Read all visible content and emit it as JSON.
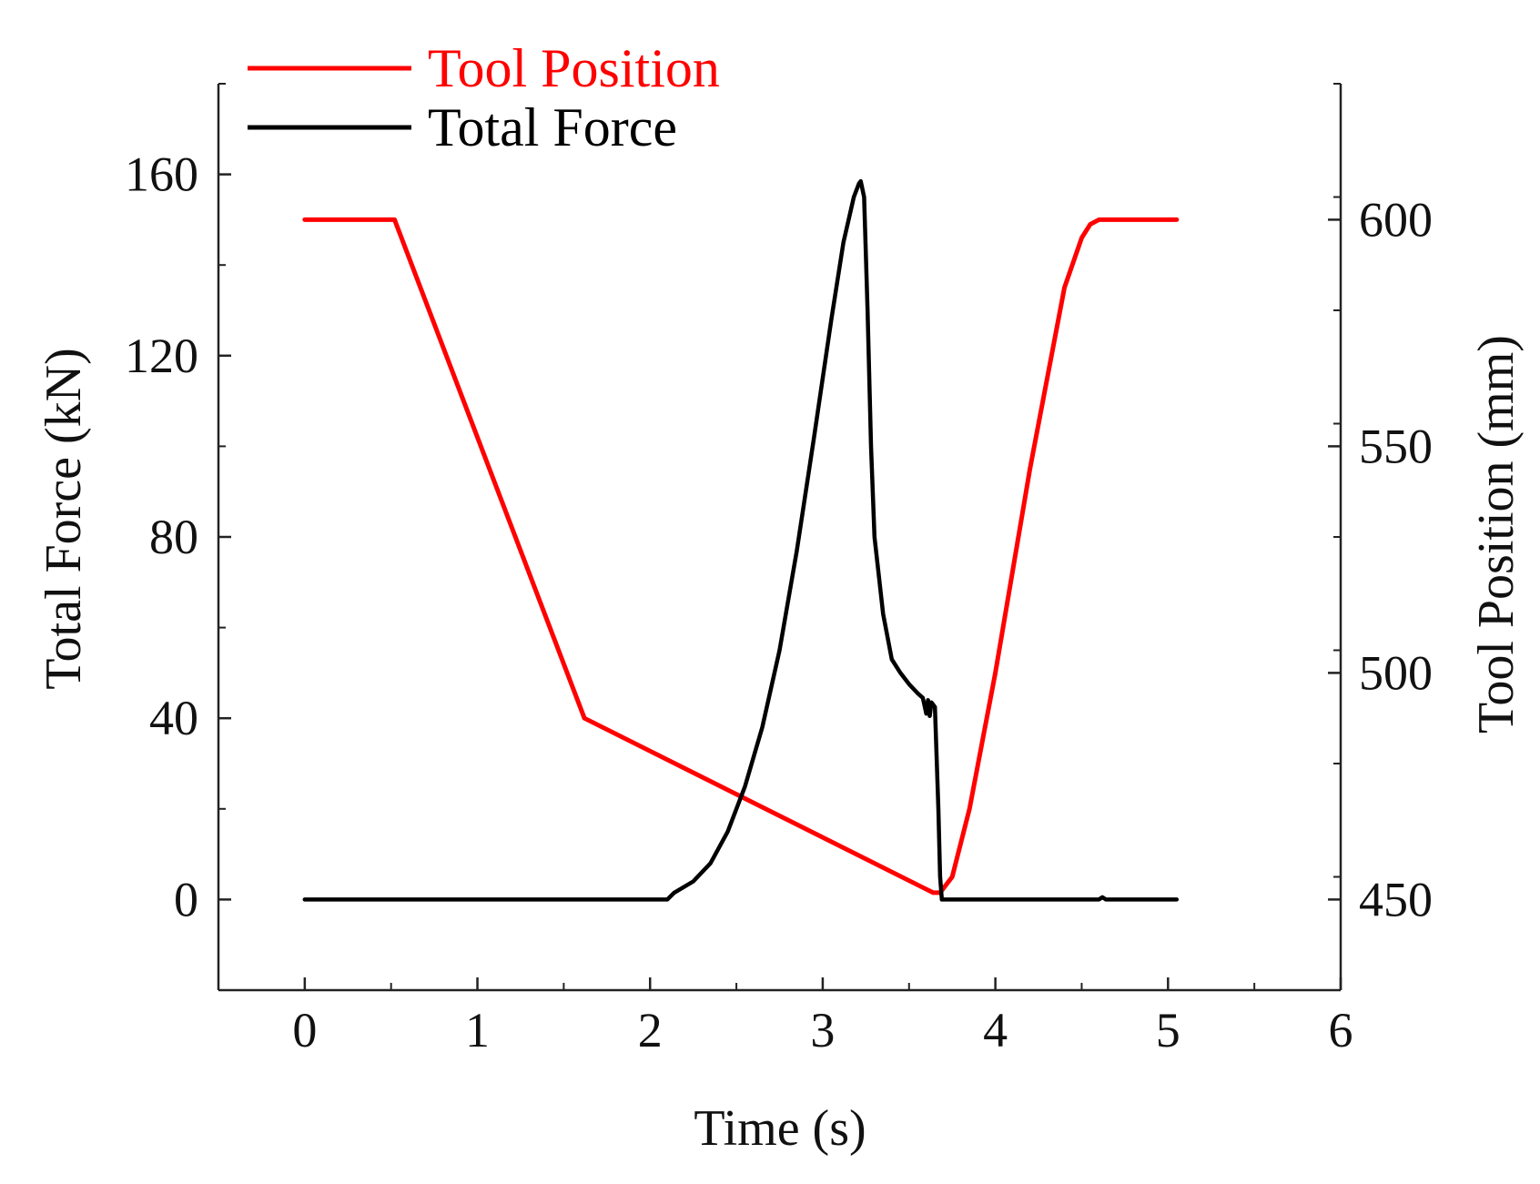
{
  "chart_data": {
    "type": "line",
    "xlabel": "Time (s)",
    "ylabel_left": "Total Force (kN)",
    "ylabel_right": "Tool Position (mm)",
    "xlim": [
      -0.5,
      6
    ],
    "ylim_left": [
      -20,
      180
    ],
    "ylim_right": [
      430,
      630
    ],
    "x_ticks": [
      0,
      1,
      2,
      3,
      4,
      5,
      6
    ],
    "y_ticks_left": [
      0,
      40,
      80,
      120,
      160
    ],
    "y_ticks_right": [
      450,
      500,
      550,
      600
    ],
    "grid": false,
    "legend_position": "top-left",
    "series": [
      {
        "name": "Tool Position",
        "axis": "right",
        "color": "#ff0000",
        "x": [
          0,
          0.52,
          1.62,
          3.64,
          3.68,
          3.75,
          3.85,
          4.0,
          4.2,
          4.4,
          4.5,
          4.55,
          4.6,
          4.65,
          5.05
        ],
        "y": [
          600,
          600,
          490,
          451.5,
          451.5,
          455,
          470,
          500,
          545,
          585,
          596,
          599,
          600,
          600,
          600
        ]
      },
      {
        "name": "Total Force",
        "axis": "left",
        "color": "#000000",
        "x": [
          0,
          2.1,
          2.14,
          2.25,
          2.35,
          2.45,
          2.55,
          2.65,
          2.75,
          2.85,
          2.95,
          3.05,
          3.12,
          3.18,
          3.21,
          3.22,
          3.24,
          3.26,
          3.28,
          3.3,
          3.35,
          3.4,
          3.45,
          3.5,
          3.55,
          3.58,
          3.6,
          3.61,
          3.62,
          3.63,
          3.65,
          3.67,
          3.68,
          3.69,
          3.7,
          3.72,
          4.6,
          4.62,
          4.64,
          5.05
        ],
        "y": [
          0,
          0,
          1.5,
          4,
          8,
          15,
          25,
          38,
          55,
          77,
          102,
          128,
          145,
          155,
          158,
          158.5,
          155,
          130,
          100,
          80,
          63,
          53,
          50,
          47.5,
          45.5,
          44.5,
          41,
          44,
          40.5,
          43.5,
          42.5,
          20,
          5,
          0,
          0,
          0,
          0,
          0.5,
          0,
          0
        ]
      }
    ]
  }
}
